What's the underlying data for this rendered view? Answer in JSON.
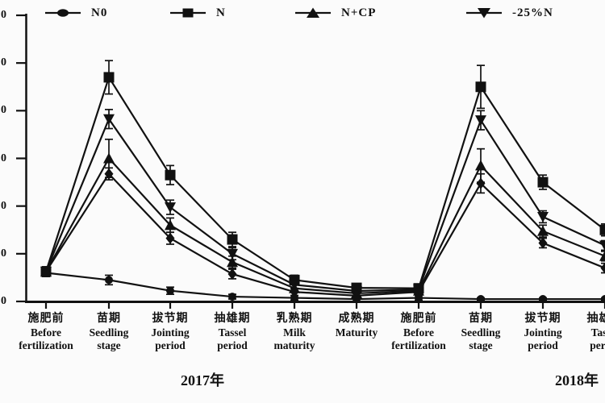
{
  "chart_data": {
    "type": "line",
    "title": "",
    "legend": [
      {
        "label": "N0",
        "marker": "circle"
      },
      {
        "label": "N",
        "marker": "square"
      },
      {
        "label": "N+CP",
        "marker": "triangle-up"
      },
      {
        "label": "-25%N",
        "marker": "triangle-down"
      }
    ],
    "x_categories": [
      {
        "zh": "施肥前",
        "en": "Before fertilization",
        "year": "2017"
      },
      {
        "zh": "苗期",
        "en": "Seedling stage",
        "year": "2017"
      },
      {
        "zh": "拔节期",
        "en": "Jointing period",
        "year": "2017"
      },
      {
        "zh": "抽雄期",
        "en": "Tassel period",
        "year": "2017"
      },
      {
        "zh": "乳熟期",
        "en": "Milk maturity",
        "year": "2017"
      },
      {
        "zh": "成熟期",
        "en": "Maturity",
        "year": "2017"
      },
      {
        "zh": "施肥前",
        "en": "Before fertilization",
        "year": "2018"
      },
      {
        "zh": "苗期",
        "en": "Seedling stage",
        "year": "2018"
      },
      {
        "zh": "拔节期",
        "en": "Jointing period",
        "year": "2018"
      },
      {
        "zh": "抽雄期",
        "en": "Tassel period",
        "year": "2018"
      }
    ],
    "year_groups": [
      {
        "label": "2017年"
      },
      {
        "label": "2018年"
      }
    ],
    "y_axis": {
      "visible_tick_label_digits": [
        "0",
        "0",
        "0",
        "0",
        "0",
        "0",
        "0"
      ],
      "assumed_range": [
        0,
        120
      ],
      "assumed_step": 20,
      "note": "left edge of figure is cropped; only trailing 0 of each tick number is visible"
    },
    "grid": false,
    "legend_position": "top",
    "series": [
      {
        "name": "N",
        "marker": "square",
        "in_legend": true,
        "values": [
          12.5,
          94,
          53,
          26,
          9,
          5.7,
          5.5,
          90,
          50,
          30
        ],
        "errors": [
          2,
          7,
          4,
          3,
          2,
          1.5,
          1.5,
          9,
          3,
          2.5
        ]
      },
      {
        "name": "-25%N",
        "marker": "triangle-down",
        "in_legend": true,
        "values": [
          12.5,
          76.5,
          39.5,
          20,
          7,
          4.4,
          5,
          76,
          35.5,
          23.5
        ],
        "errors": [
          2,
          4,
          3,
          2.5,
          1.5,
          1,
          1.5,
          4,
          2.5,
          2
        ]
      },
      {
        "name": "N+CP",
        "marker": "triangle-up",
        "in_legend": true,
        "values": [
          12.5,
          60,
          32,
          16.5,
          5.5,
          3.4,
          4.5,
          57,
          29.5,
          19
        ],
        "errors": [
          2,
          8,
          3,
          2.5,
          1.5,
          1,
          1.5,
          7,
          2.5,
          2
        ]
      },
      {
        "name": "unlabeled-diamond",
        "marker": "diamond",
        "in_legend": false,
        "values": [
          12.5,
          53.5,
          26.5,
          11.5,
          4,
          2.4,
          4,
          49.5,
          24.5,
          14
        ],
        "errors": [
          2,
          2.5,
          2.5,
          2,
          1.5,
          1,
          1.5,
          4,
          2,
          2
        ]
      },
      {
        "name": "N0",
        "marker": "circle",
        "in_legend": true,
        "values": [
          12,
          9,
          4.5,
          2,
          1.5,
          1,
          1.5,
          1,
          1,
          1
        ],
        "errors": [
          1.5,
          2,
          1.5,
          1,
          1,
          1,
          1,
          0.5,
          0.5,
          0.5
        ]
      }
    ]
  }
}
